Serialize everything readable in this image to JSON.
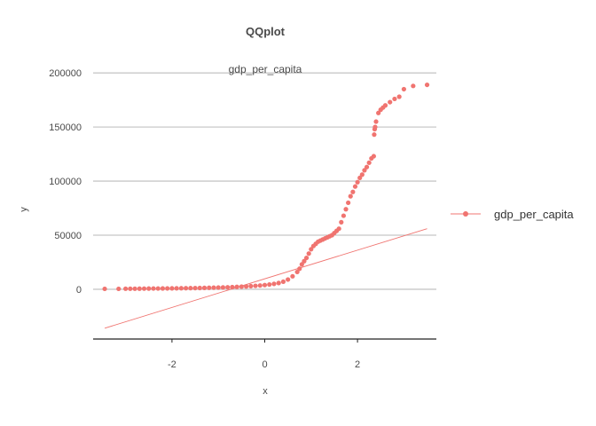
{
  "chart_data": {
    "type": "scatter",
    "title": "QQplot",
    "subtitle": "gdp_per_capita",
    "xlabel": "x",
    "ylabel": "y",
    "xlim": [
      -3.7,
      3.7
    ],
    "ylim": [
      -46000,
      210000
    ],
    "x_ticks": [
      -2,
      0,
      2
    ],
    "x_tick_labels": [
      "-2",
      "0",
      "2"
    ],
    "y_ticks": [
      0,
      50000,
      100000,
      150000,
      200000
    ],
    "y_tick_labels": [
      "0",
      "50000",
      "100000",
      "150000",
      "200000"
    ],
    "grid": "horizontal",
    "legend_position": "right",
    "color": "#f07470",
    "series": [
      {
        "name": "gdp_per_capita",
        "points": [
          [
            -3.45,
            400
          ],
          [
            -3.15,
            400
          ],
          [
            -3.0,
            500
          ],
          [
            -2.9,
            500
          ],
          [
            -2.8,
            500
          ],
          [
            -2.7,
            550
          ],
          [
            -2.6,
            600
          ],
          [
            -2.5,
            650
          ],
          [
            -2.4,
            700
          ],
          [
            -2.3,
            700
          ],
          [
            -2.2,
            750
          ],
          [
            -2.1,
            800
          ],
          [
            -2.0,
            850
          ],
          [
            -1.9,
            900
          ],
          [
            -1.8,
            950
          ],
          [
            -1.7,
            1000
          ],
          [
            -1.6,
            1050
          ],
          [
            -1.5,
            1100
          ],
          [
            -1.4,
            1200
          ],
          [
            -1.3,
            1300
          ],
          [
            -1.2,
            1400
          ],
          [
            -1.1,
            1500
          ],
          [
            -1.0,
            1600
          ],
          [
            -0.9,
            1700
          ],
          [
            -0.8,
            1850
          ],
          [
            -0.7,
            2000
          ],
          [
            -0.6,
            2200
          ],
          [
            -0.5,
            2400
          ],
          [
            -0.4,
            2600
          ],
          [
            -0.3,
            2900
          ],
          [
            -0.2,
            3200
          ],
          [
            -0.1,
            3500
          ],
          [
            0.0,
            3900
          ],
          [
            0.1,
            4400
          ],
          [
            0.2,
            5000
          ],
          [
            0.3,
            5800
          ],
          [
            0.4,
            7000
          ],
          [
            0.5,
            9000
          ],
          [
            0.6,
            12000
          ],
          [
            0.7,
            16000
          ],
          [
            0.75,
            19000
          ],
          [
            0.8,
            23000
          ],
          [
            0.85,
            26000
          ],
          [
            0.9,
            29000
          ],
          [
            0.95,
            33000
          ],
          [
            1.0,
            37000
          ],
          [
            1.05,
            40000
          ],
          [
            1.1,
            42000
          ],
          [
            1.15,
            44000
          ],
          [
            1.2,
            45000
          ],
          [
            1.25,
            46000
          ],
          [
            1.3,
            47000
          ],
          [
            1.35,
            48000
          ],
          [
            1.4,
            49000
          ],
          [
            1.45,
            50000
          ],
          [
            1.5,
            52000
          ],
          [
            1.55,
            54000
          ],
          [
            1.6,
            56000
          ],
          [
            1.65,
            62000
          ],
          [
            1.7,
            68000
          ],
          [
            1.75,
            74000
          ],
          [
            1.8,
            80000
          ],
          [
            1.85,
            86000
          ],
          [
            1.9,
            90000
          ],
          [
            1.95,
            95000
          ],
          [
            2.0,
            99000
          ],
          [
            2.05,
            103000
          ],
          [
            2.1,
            106000
          ],
          [
            2.15,
            110000
          ],
          [
            2.2,
            113000
          ],
          [
            2.25,
            117000
          ],
          [
            2.3,
            121000
          ],
          [
            2.35,
            123000
          ],
          [
            2.36,
            143000
          ],
          [
            2.37,
            148000
          ],
          [
            2.38,
            150000
          ],
          [
            2.4,
            155000
          ],
          [
            2.45,
            163000
          ],
          [
            2.5,
            166000
          ],
          [
            2.55,
            168000
          ],
          [
            2.6,
            170000
          ],
          [
            2.7,
            173000
          ],
          [
            2.8,
            176000
          ],
          [
            2.9,
            178000
          ],
          [
            3.0,
            185000
          ],
          [
            3.2,
            188000
          ],
          [
            3.5,
            189000
          ]
        ]
      }
    ],
    "qq_line": [
      [
        -3.45,
        -36000
      ],
      [
        3.5,
        56000
      ]
    ]
  }
}
